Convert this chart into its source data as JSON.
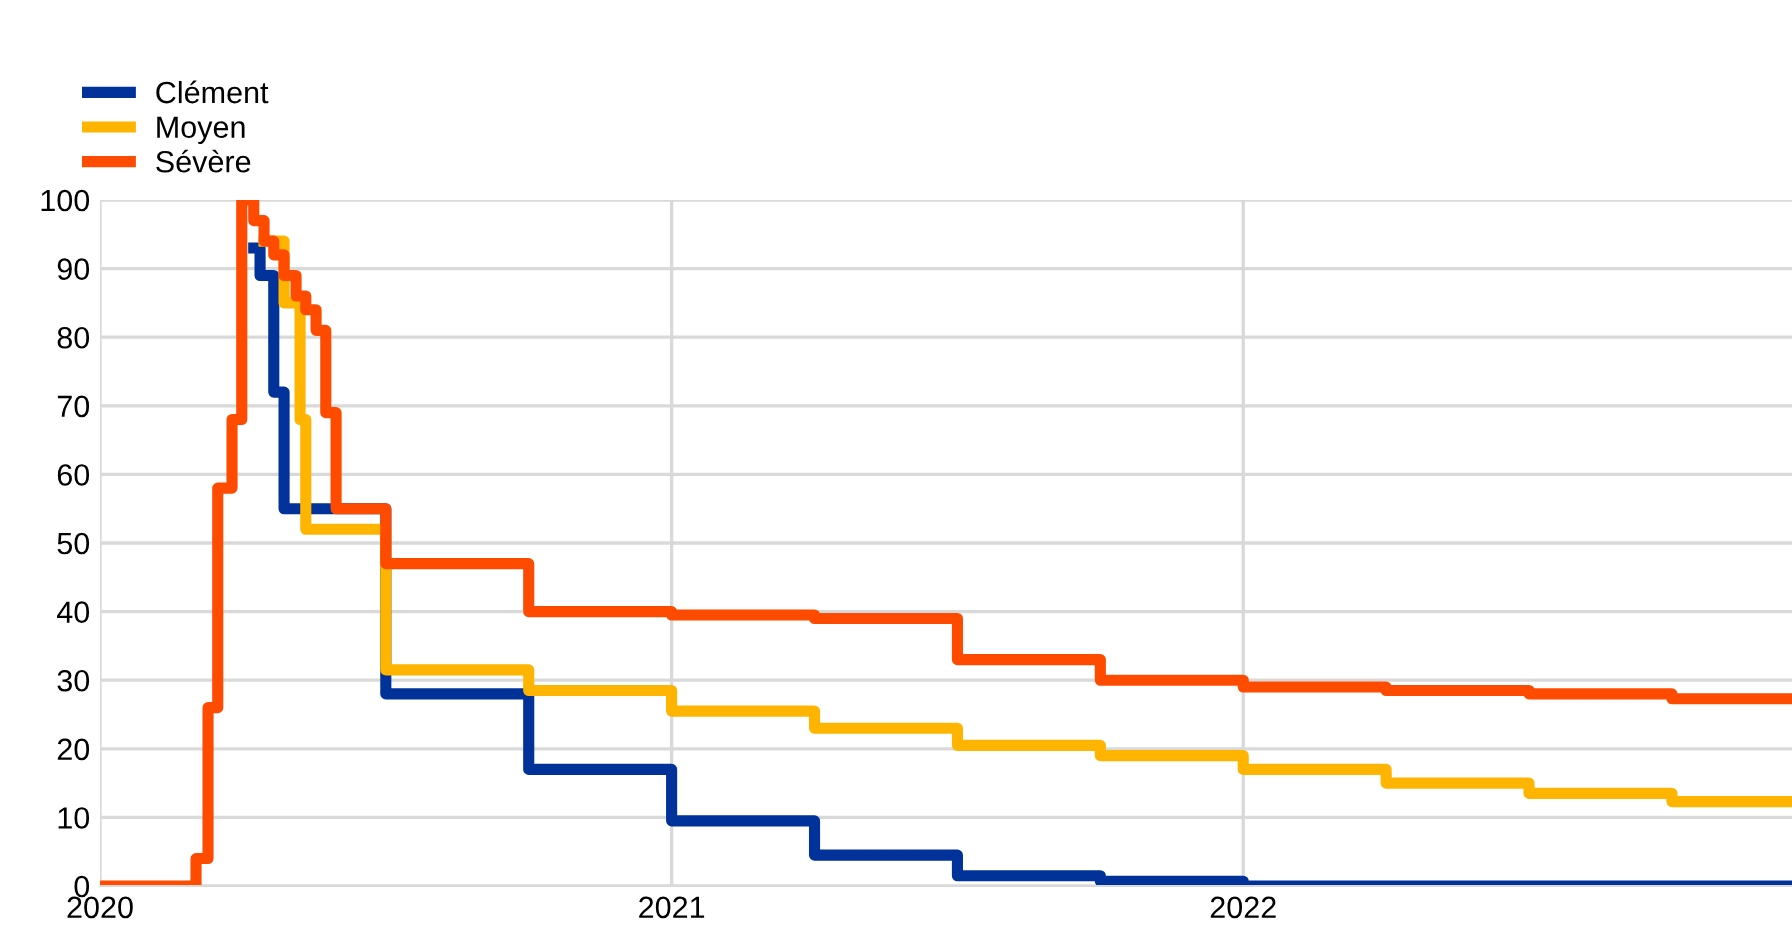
{
  "chart_data": {
    "type": "step",
    "xlim": [
      2020,
      2022.96
    ],
    "xticks": [
      2020,
      2021,
      2022
    ],
    "ylim": [
      0,
      100
    ],
    "yticks": [
      0,
      10,
      20,
      30,
      40,
      50,
      60,
      70,
      80,
      90,
      100
    ],
    "grid": true,
    "legend": "top left",
    "line_style": "solid",
    "marker": "none",
    "series": [
      {
        "name": "Clément",
        "color": "#003299",
        "x": [
          2020.269,
          2020.28,
          2020.304,
          2020.322,
          2020.5,
          2020.75,
          2021,
          2021.25,
          2021.5,
          2021.75,
          2022,
          2022.96
        ],
        "values": [
          93,
          89,
          72,
          55,
          28,
          17,
          9.5,
          4.5,
          1.5,
          0.7,
          0,
          0
        ]
      },
      {
        "name": "Moyen",
        "color": "#ffb400",
        "x": [
          2020.287,
          2020.322,
          2020.35,
          2020.36,
          2020.5,
          2020.75,
          2021,
          2021.25,
          2021.5,
          2021.75,
          2022,
          2022.25,
          2022.5,
          2022.75,
          2022.96
        ],
        "values": [
          94,
          85,
          68,
          52,
          31.5,
          28.5,
          25.5,
          23,
          20.5,
          19,
          17,
          15,
          13.5,
          12.3,
          12.3
        ]
      },
      {
        "name": "Sévère",
        "color": "#ff4b00",
        "x": [
          2020,
          2020.168,
          2020.189,
          2020.206,
          2020.231,
          2020.248,
          2020.269,
          2020.287,
          2020.304,
          2020.322,
          2020.343,
          2020.36,
          2020.378,
          2020.395,
          2020.413,
          2020.5,
          2020.75,
          2021,
          2021.25,
          2021.5,
          2021.75,
          2022,
          2022.25,
          2022.5,
          2022.75,
          2022.96
        ],
        "values": [
          0,
          4,
          26,
          58,
          68,
          100,
          97,
          94,
          92,
          89,
          86,
          84,
          81,
          69,
          55,
          47,
          40,
          39.5,
          39,
          33,
          30,
          29,
          28.5,
          28,
          27.3,
          27.3
        ]
      }
    ]
  }
}
